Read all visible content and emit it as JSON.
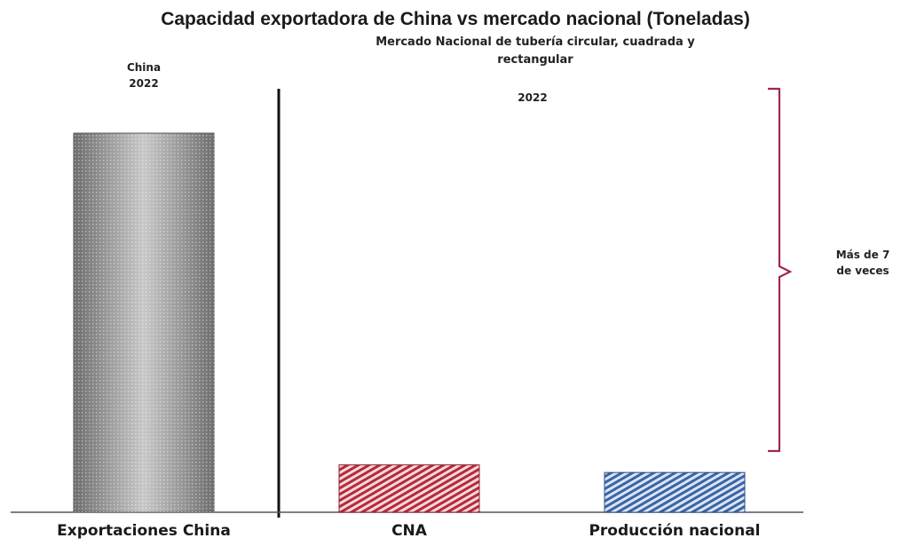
{
  "chart_data": {
    "type": "bar",
    "title": "Capacidad exportadora de China vs mercado nacional (Toneladas)",
    "categories": [
      "Exportaciones China",
      "CNA",
      "Producción nacional"
    ],
    "values": [
      100,
      12.5,
      10.5
    ],
    "ylim": [
      0,
      100
    ],
    "colors": [
      "#8a8a8a",
      "#b52a3a",
      "#3a64a8"
    ],
    "left_panel": {
      "label_line1": "China",
      "label_line2": "2022"
    },
    "right_panel": {
      "subtitle_line1": "Mercado Nacional de tubería circular, cuadrada y",
      "subtitle_line2": "rectangular",
      "year": "2022"
    },
    "annotation": {
      "line1": "Más de 7",
      "line2": "de  veces",
      "color": "#a3274a"
    },
    "grid": false,
    "legend": "none"
  }
}
